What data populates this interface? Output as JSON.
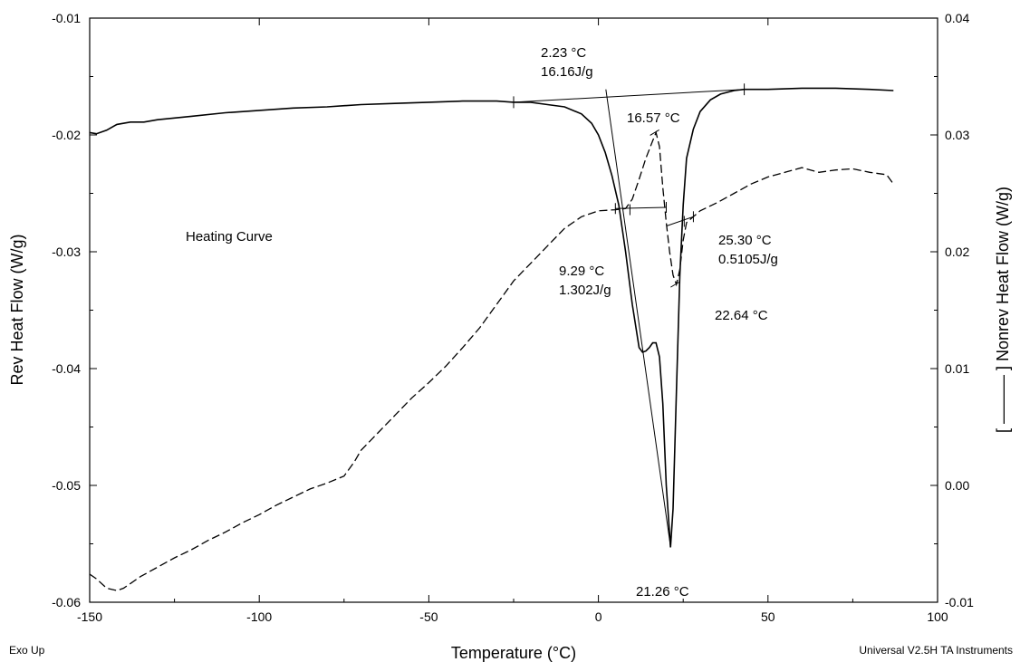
{
  "chart_data": {
    "type": "line",
    "title": "",
    "xlabel": "Temperature (°C)",
    "ylabel": "Rev Heat Flow (W/g)",
    "y2label": "[ ——— ] Nonrev Heat Flow (W/g)",
    "xlim": [
      -150,
      100
    ],
    "ylim": [
      -0.06,
      -0.01
    ],
    "y2lim": [
      -0.01,
      0.04
    ],
    "x_ticks": [
      "-150",
      "-100",
      "-50",
      "0",
      "50",
      "100"
    ],
    "y_ticks": [
      "-0.01",
      "-0.02",
      "-0.03",
      "-0.04",
      "-0.05",
      "-0.06"
    ],
    "y2_ticks": [
      "0.04",
      "0.03",
      "0.02",
      "0.01",
      "0.00",
      "-0.01"
    ],
    "grid": false,
    "series": [
      {
        "style": "solid",
        "axis": "left",
        "points": [
          [
            -150,
            -0.0198
          ],
          [
            -148,
            -0.0199
          ],
          [
            -145,
            -0.0196
          ],
          [
            -142,
            -0.0191
          ],
          [
            -138,
            -0.0189
          ],
          [
            -134,
            -0.0189
          ],
          [
            -130,
            -0.0187
          ],
          [
            -120,
            -0.0184
          ],
          [
            -110,
            -0.0181
          ],
          [
            -100,
            -0.0179
          ],
          [
            -90,
            -0.0177
          ],
          [
            -80,
            -0.0176
          ],
          [
            -70,
            -0.0174
          ],
          [
            -60,
            -0.0173
          ],
          [
            -50,
            -0.0172
          ],
          [
            -40,
            -0.0171
          ],
          [
            -30,
            -0.0171
          ],
          [
            -25,
            -0.0172
          ],
          [
            -20,
            -0.0172
          ],
          [
            -15,
            -0.0174
          ],
          [
            -10,
            -0.0176
          ],
          [
            -5,
            -0.0182
          ],
          [
            -2,
            -0.019
          ],
          [
            0,
            -0.02
          ],
          [
            2,
            -0.0215
          ],
          [
            4,
            -0.0235
          ],
          [
            6,
            -0.026
          ],
          [
            8,
            -0.03
          ],
          [
            10,
            -0.0345
          ],
          [
            12,
            -0.0382
          ],
          [
            13,
            -0.0386
          ],
          [
            14,
            -0.0385
          ],
          [
            15,
            -0.0382
          ],
          [
            16,
            -0.0378
          ],
          [
            17,
            -0.0378
          ],
          [
            18,
            -0.039
          ],
          [
            19,
            -0.043
          ],
          [
            20,
            -0.05
          ],
          [
            21.26,
            -0.0553
          ],
          [
            22,
            -0.052
          ],
          [
            23,
            -0.042
          ],
          [
            24,
            -0.032
          ],
          [
            25,
            -0.026
          ],
          [
            26,
            -0.022
          ],
          [
            28,
            -0.0195
          ],
          [
            30,
            -0.018
          ],
          [
            33,
            -0.017
          ],
          [
            36,
            -0.0165
          ],
          [
            40,
            -0.0162
          ],
          [
            43,
            -0.0161
          ],
          [
            50,
            -0.0161
          ],
          [
            60,
            -0.016
          ],
          [
            70,
            -0.016
          ],
          [
            80,
            -0.0161
          ],
          [
            87,
            -0.0162
          ]
        ]
      },
      {
        "style": "dashed",
        "axis": "right",
        "points": [
          [
            -150,
            -0.0076
          ],
          [
            -148,
            -0.008
          ],
          [
            -145,
            -0.0088
          ],
          [
            -142,
            -0.009
          ],
          [
            -140,
            -0.0088
          ],
          [
            -138,
            -0.0084
          ],
          [
            -135,
            -0.0078
          ],
          [
            -130,
            -0.007
          ],
          [
            -125,
            -0.0062
          ],
          [
            -120,
            -0.0055
          ],
          [
            -115,
            -0.0047
          ],
          [
            -110,
            -0.004
          ],
          [
            -105,
            -0.0032
          ],
          [
            -100,
            -0.0025
          ],
          [
            -95,
            -0.0017
          ],
          [
            -90,
            -0.001
          ],
          [
            -85,
            -0.0003
          ],
          [
            -80,
            0.0002
          ],
          [
            -75,
            0.0008
          ],
          [
            -72,
            0.002
          ],
          [
            -70,
            0.003
          ],
          [
            -65,
            0.0045
          ],
          [
            -60,
            0.006
          ],
          [
            -55,
            0.0075
          ],
          [
            -50,
            0.0088
          ],
          [
            -45,
            0.0102
          ],
          [
            -40,
            0.0118
          ],
          [
            -35,
            0.0135
          ],
          [
            -30,
            0.0155
          ],
          [
            -25,
            0.0175
          ],
          [
            -20,
            0.019
          ],
          [
            -15,
            0.0205
          ],
          [
            -10,
            0.022
          ],
          [
            -5,
            0.023
          ],
          [
            0,
            0.0235
          ],
          [
            5,
            0.0236
          ],
          [
            8,
            0.0237
          ],
          [
            10,
            0.0245
          ],
          [
            12,
            0.0262
          ],
          [
            14,
            0.028
          ],
          [
            16,
            0.0295
          ],
          [
            17,
            0.0302
          ],
          [
            18,
            0.029
          ],
          [
            19,
            0.0255
          ],
          [
            20,
            0.0225
          ],
          [
            21,
            0.02
          ],
          [
            22,
            0.018
          ],
          [
            23,
            0.0172
          ],
          [
            24,
            0.0185
          ],
          [
            25,
            0.021
          ],
          [
            26,
            0.0225
          ],
          [
            28,
            0.023
          ],
          [
            30,
            0.0235
          ],
          [
            35,
            0.0242
          ],
          [
            40,
            0.025
          ],
          [
            45,
            0.0258
          ],
          [
            50,
            0.0264
          ],
          [
            55,
            0.0268
          ],
          [
            60,
            0.0272
          ],
          [
            65,
            0.0268
          ],
          [
            70,
            0.027
          ],
          [
            75,
            0.0271
          ],
          [
            80,
            0.0268
          ],
          [
            85,
            0.0266
          ],
          [
            87,
            0.0258
          ]
        ]
      }
    ],
    "annotations": [
      {
        "lines": [
          "2.23 °C",
          "16.16J/g"
        ]
      },
      {
        "lines": [
          "16.57 °C"
        ]
      },
      {
        "lines": [
          "Heating Curve"
        ]
      },
      {
        "lines": [
          "25.30 °C",
          "0.5105J/g"
        ]
      },
      {
        "lines": [
          "9.29 °C",
          "1.302J/g"
        ]
      },
      {
        "lines": [
          "22.64 °C"
        ]
      },
      {
        "lines": [
          "21.26 °C"
        ]
      }
    ]
  },
  "footer": {
    "left": "Exo Up",
    "right": "Universal V2.5H TA Instruments"
  }
}
